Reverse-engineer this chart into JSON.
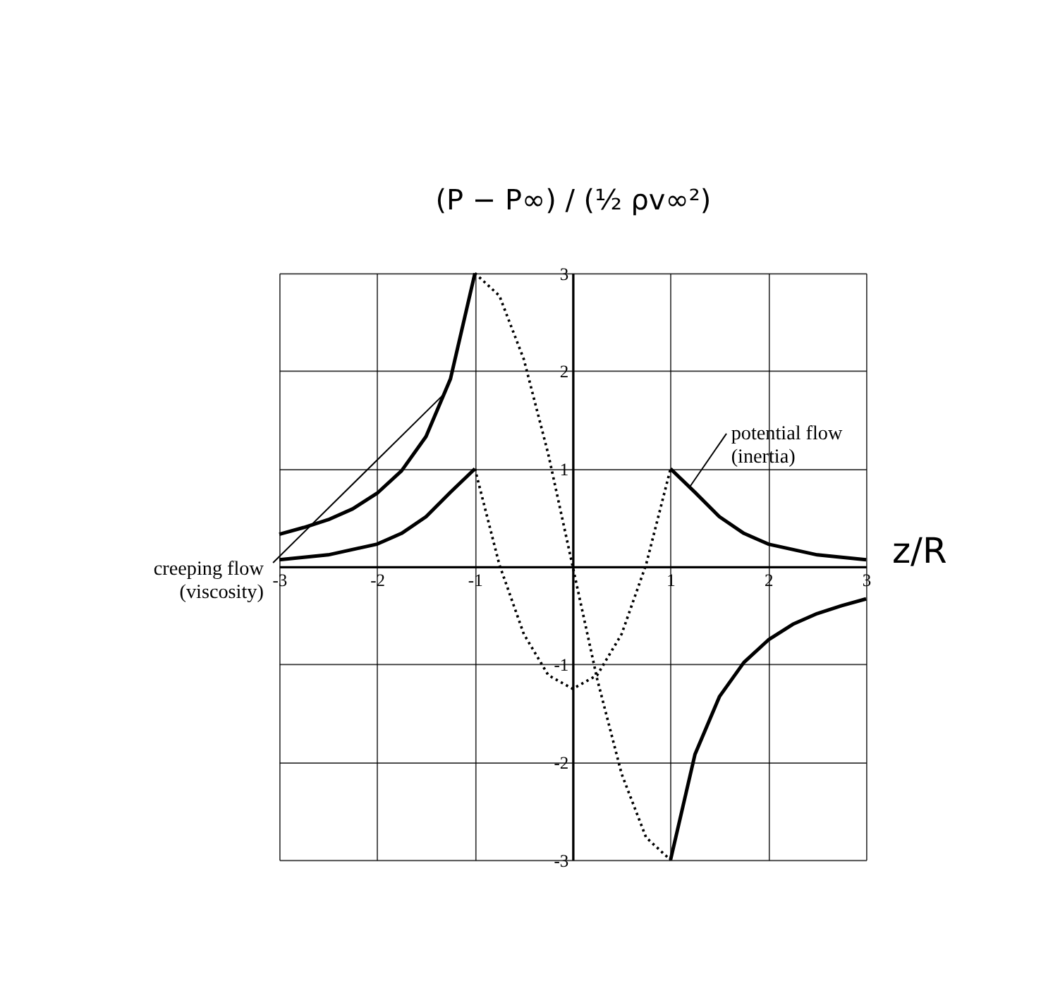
{
  "chart_data": {
    "type": "line",
    "ylabel": "(P − P∞) / (½ ρv∞²)",
    "xlabel": "z/R",
    "xlim": [
      -3,
      3
    ],
    "ylim": [
      -3,
      3
    ],
    "xticks": [
      -3,
      -2,
      -1,
      {
        "value": 0,
        "label": null
      },
      1,
      2,
      3
    ],
    "yticks": [
      -3,
      -2,
      -1,
      {
        "value": 0,
        "label": null
      },
      1,
      2,
      3
    ],
    "grid": true,
    "marker": "none",
    "annotations": [
      {
        "text": "creeping flow\n(viscosity)",
        "x": -1.3,
        "y": 1.78
      },
      {
        "text": "potential flow\n(inertia)",
        "x": 1.2,
        "y": 0.82
      }
    ],
    "series": [
      {
        "color": "#000000",
        "line_style": "solid",
        "x": [
          -3,
          -2.75,
          -2.5,
          -2.25,
          -2,
          -1.75,
          -1.5,
          -1.25,
          -1
        ],
        "values": [
          0.33,
          0.4,
          0.48,
          0.59,
          0.75,
          0.98,
          1.33,
          1.92,
          3
        ]
      },
      {
        "color": "#000000",
        "line_style": "solid",
        "x": [
          1,
          1.25,
          1.5,
          1.75,
          2,
          2.25,
          2.5,
          2.75,
          3
        ],
        "values": [
          -3,
          -1.92,
          -1.33,
          -0.98,
          -0.75,
          -0.59,
          -0.48,
          -0.4,
          -0.33
        ]
      },
      {
        "color": "#000000",
        "line_style": "dotted",
        "x": [
          -1,
          -0.75,
          -0.5,
          -0.25,
          0,
          0.25,
          0.5,
          0.75,
          1
        ],
        "values": [
          3,
          2.77,
          2.12,
          1.15,
          0,
          -1.15,
          -2.12,
          -2.77,
          -3
        ]
      },
      {
        "color": "#000000",
        "line_style": "solid",
        "x": [
          -3,
          -2.5,
          -2,
          -1.75,
          -1.5,
          -1.25,
          -1
        ],
        "values": [
          0.07,
          0.12,
          0.23,
          0.34,
          0.51,
          0.76,
          1
        ]
      },
      {
        "color": "#000000",
        "line_style": "solid",
        "x": [
          1,
          1.25,
          1.5,
          1.75,
          2,
          2.5,
          3
        ],
        "values": [
          1,
          0.76,
          0.51,
          0.34,
          0.23,
          0.12,
          0.07
        ]
      },
      {
        "color": "#000000",
        "line_style": "dotted",
        "x": [
          -1,
          -0.75,
          -0.5,
          -0.25,
          0,
          0.25,
          0.5,
          0.75,
          1
        ],
        "values": [
          1,
          0.02,
          -0.69,
          -1.11,
          -1.25,
          -1.11,
          -0.69,
          0.02,
          1
        ]
      }
    ]
  }
}
